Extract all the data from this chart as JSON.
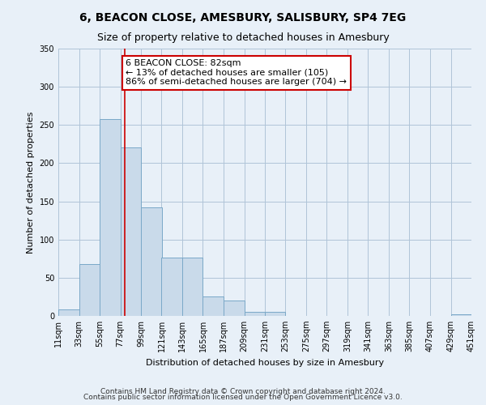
{
  "title": "6, BEACON CLOSE, AMESBURY, SALISBURY, SP4 7EG",
  "subtitle": "Size of property relative to detached houses in Amesbury",
  "xlabel": "Distribution of detached houses by size in Amesbury",
  "ylabel": "Number of detached properties",
  "bar_color": "#c9daea",
  "bar_edge_color": "#7aa8c8",
  "background_color": "#e8f0f8",
  "grid_color": "#b0c4d8",
  "bin_edges": [
    11,
    33,
    55,
    77,
    99,
    121,
    143,
    165,
    187,
    209,
    231,
    253,
    275,
    297,
    319,
    341,
    363,
    385,
    407,
    429,
    451
  ],
  "bin_counts": [
    8,
    68,
    258,
    221,
    142,
    76,
    76,
    25,
    20,
    5,
    5,
    0,
    0,
    0,
    0,
    0,
    0,
    0,
    0,
    2
  ],
  "property_size": 82,
  "vline_color": "#cc0000",
  "annotation_text": "6 BEACON CLOSE: 82sqm\n← 13% of detached houses are smaller (105)\n86% of semi-detached houses are larger (704) →",
  "annotation_box_facecolor": "#ffffff",
  "annotation_box_edgecolor": "#cc0000",
  "ylim": [
    0,
    350
  ],
  "yticks": [
    0,
    50,
    100,
    150,
    200,
    250,
    300,
    350
  ],
  "tick_labels": [
    "11sqm",
    "33sqm",
    "55sqm",
    "77sqm",
    "99sqm",
    "121sqm",
    "143sqm",
    "165sqm",
    "187sqm",
    "209sqm",
    "231sqm",
    "253sqm",
    "275sqm",
    "297sqm",
    "319sqm",
    "341sqm",
    "363sqm",
    "385sqm",
    "407sqm",
    "429sqm",
    "451sqm"
  ],
  "footnote1": "Contains HM Land Registry data © Crown copyright and database right 2024.",
  "footnote2": "Contains public sector information licensed under the Open Government Licence v3.0.",
  "title_fontsize": 10,
  "subtitle_fontsize": 9,
  "axis_label_fontsize": 8,
  "tick_fontsize": 7,
  "footnote_fontsize": 6.5,
  "annotation_fontsize": 8
}
